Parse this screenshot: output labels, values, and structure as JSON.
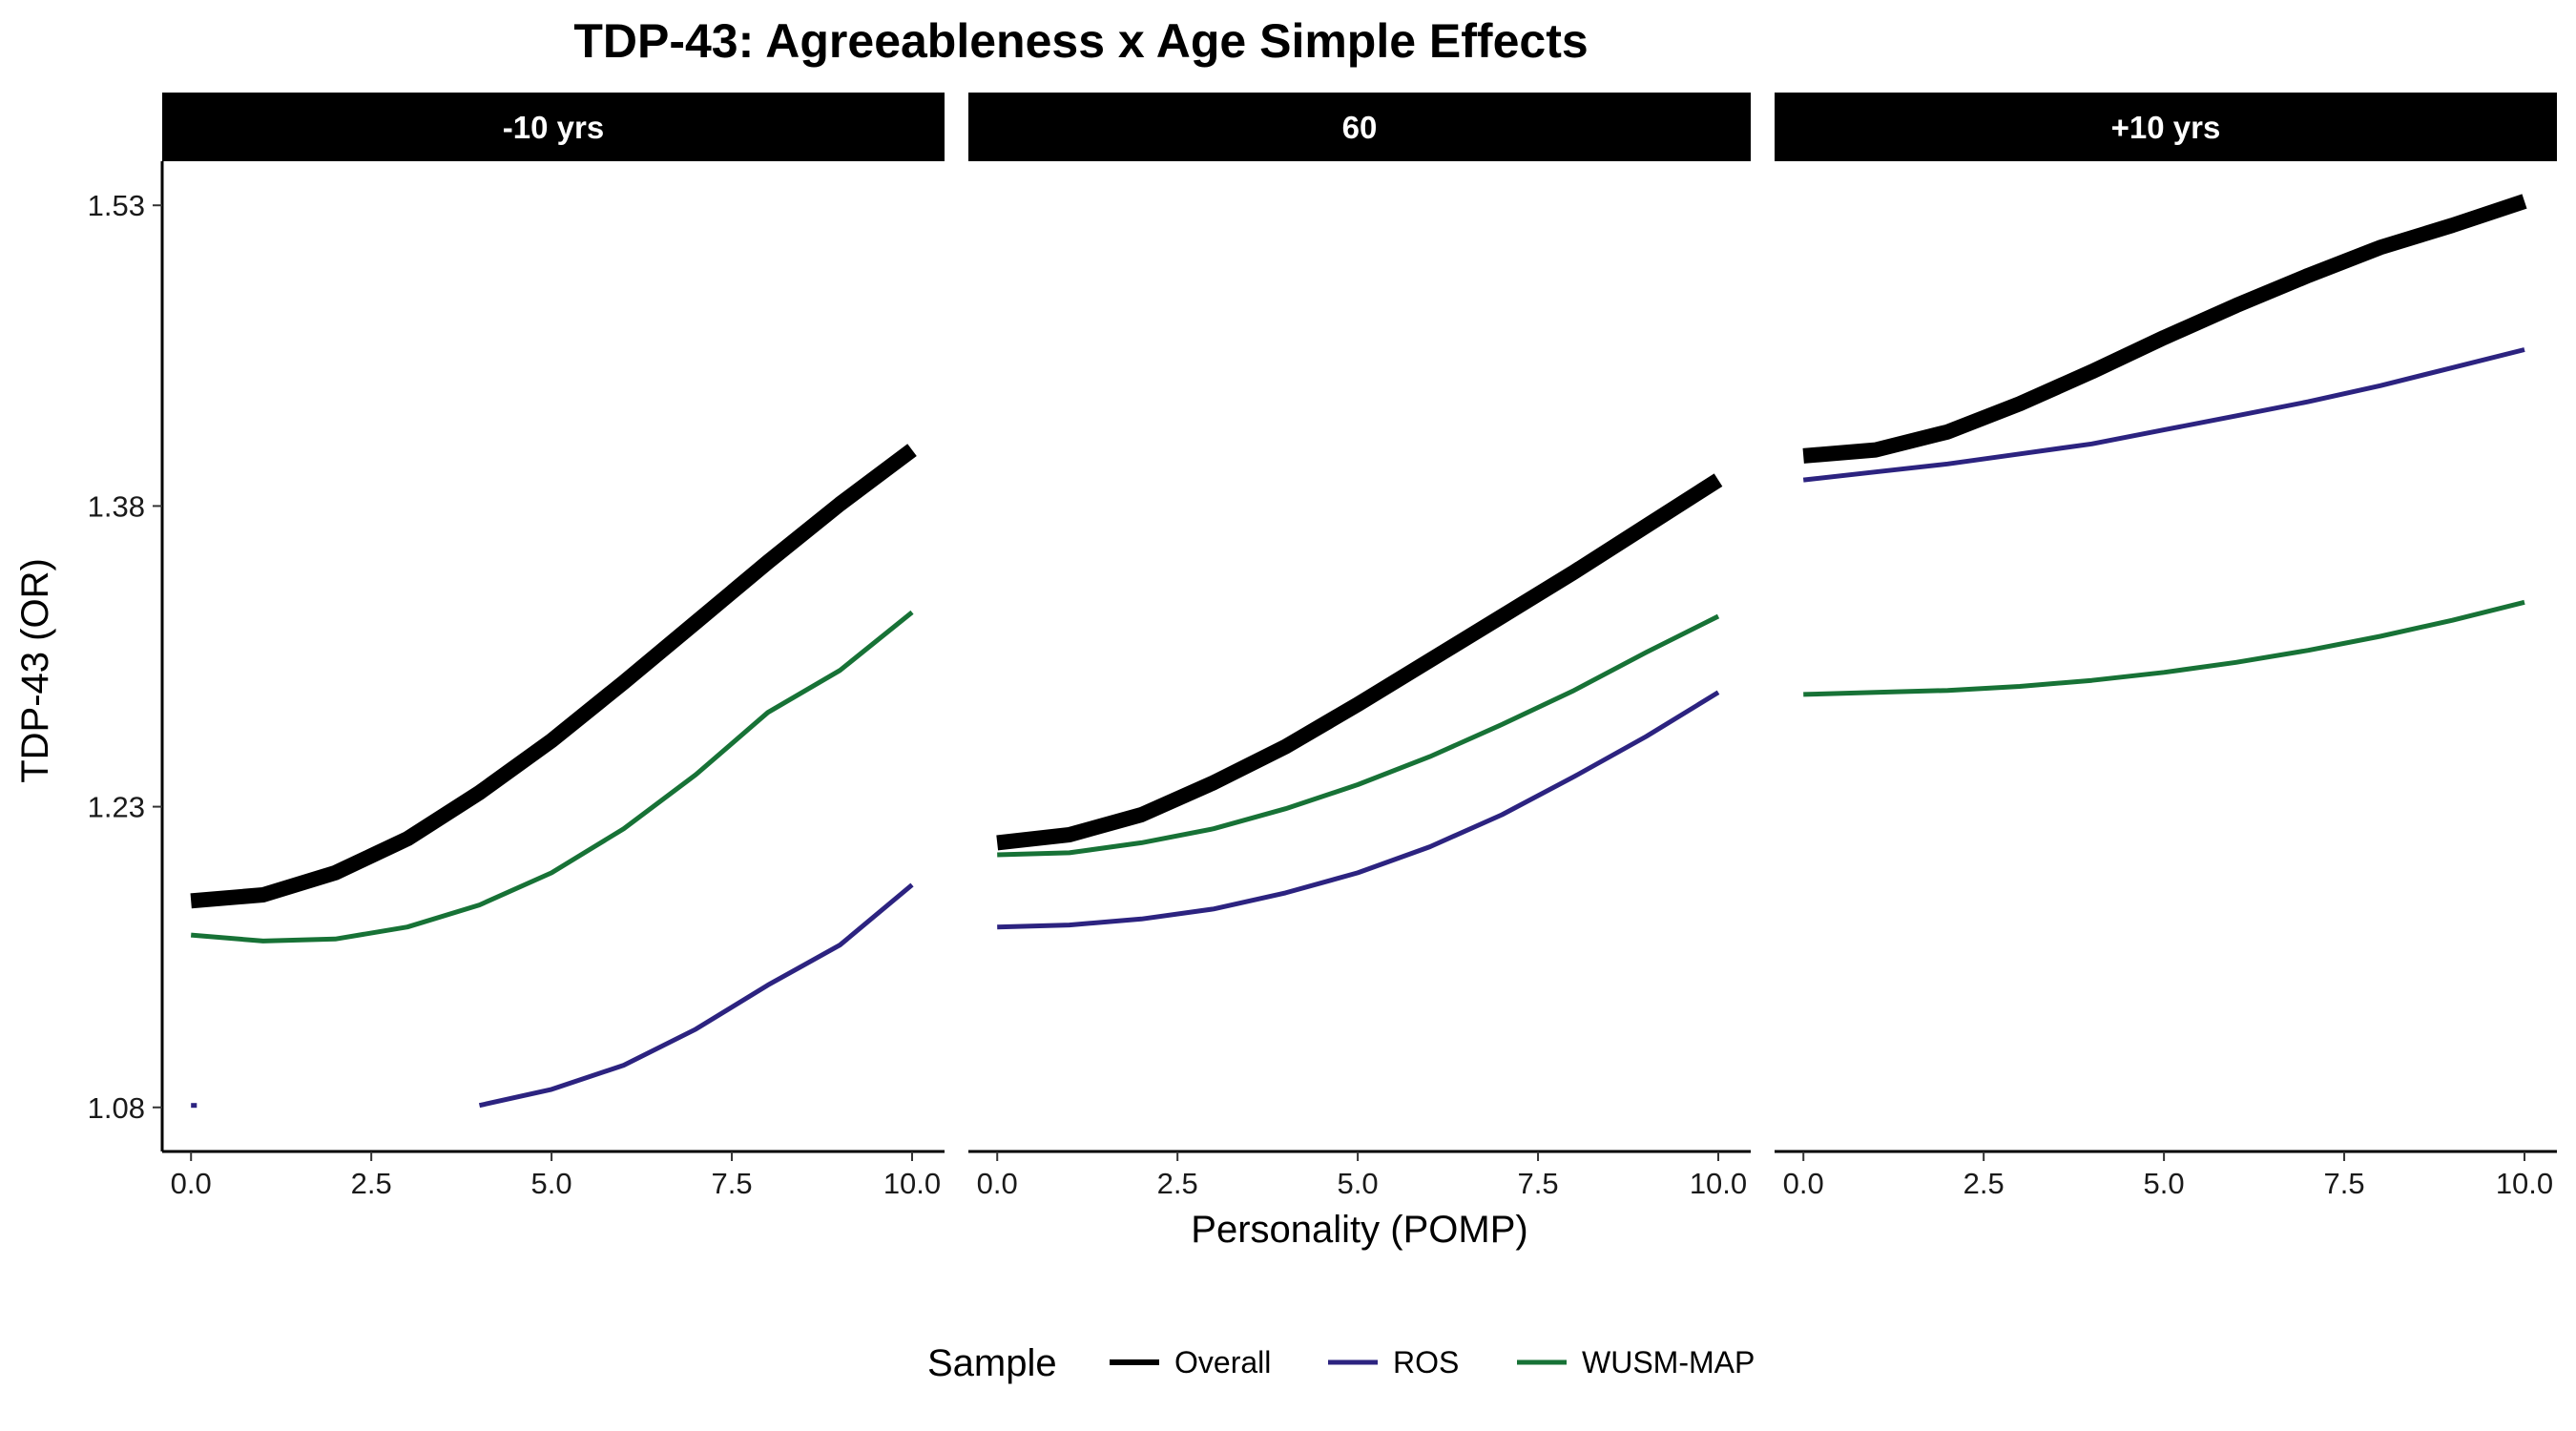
{
  "chart_data": {
    "type": "line",
    "title": "TDP-43: Agreeableness x Age Simple Effects",
    "xlabel": "Personality (POMP)",
    "ylabel": "TDP-43 (OR)",
    "xlim": [
      -0.4,
      10.45
    ],
    "ylim": [
      1.058,
      1.552
    ],
    "x_ticks": [
      0,
      2.5,
      5,
      7.5,
      10
    ],
    "x_tick_labels": [
      "0.0",
      "2.5",
      "5.0",
      "7.5",
      "10.0"
    ],
    "y_ticks": [
      1.08,
      1.23,
      1.38,
      1.53
    ],
    "y_tick_labels": [
      "1.08",
      "1.23",
      "1.38",
      "1.53"
    ],
    "grid": false,
    "legend": {
      "title": "Sample",
      "position": "bottom",
      "entries": [
        {
          "label": "Overall",
          "color": "#000000"
        },
        {
          "label": "ROS",
          "color": "#2c2380"
        },
        {
          "label": "WUSM-MAP",
          "color": "#177236"
        }
      ]
    },
    "panels": [
      {
        "label": "-10 yrs",
        "series": [
          {
            "name": "Overall",
            "color": "#000000",
            "x": [
              0,
              1,
              2,
              3,
              4,
              5,
              6,
              7,
              8,
              9,
              10
            ],
            "y": [
              1.183,
              1.186,
              1.197,
              1.214,
              1.237,
              1.263,
              1.292,
              1.322,
              1.352,
              1.381,
              1.408
            ]
          },
          {
            "name": "WUSM-MAP",
            "color": "#177236",
            "x": [
              0,
              1,
              2,
              3,
              4,
              5,
              6,
              7,
              8,
              9,
              10
            ],
            "y": [
              1.166,
              1.163,
              1.164,
              1.17,
              1.181,
              1.197,
              1.219,
              1.246,
              1.277,
              1.298,
              1.327
            ]
          },
          {
            "name": "ROS",
            "color": "#2c2380",
            "x": [
              4,
              5,
              6,
              7,
              8,
              9,
              10
            ],
            "y": [
              1.081,
              1.089,
              1.101,
              1.119,
              1.141,
              1.161,
              1.191
            ]
          },
          {
            "name": "ROS",
            "color": "#2c2380",
            "x": [
              0,
              0.08
            ],
            "y": [
              1.081,
              1.081
            ]
          }
        ]
      },
      {
        "label": "60",
        "series": [
          {
            "name": "Overall",
            "color": "#000000",
            "x": [
              0,
              1,
              2,
              3,
              4,
              5,
              6,
              7,
              8,
              9,
              10
            ],
            "y": [
              1.212,
              1.216,
              1.226,
              1.242,
              1.26,
              1.281,
              1.303,
              1.325,
              1.347,
              1.37,
              1.393
            ]
          },
          {
            "name": "WUSM-MAP",
            "color": "#177236",
            "x": [
              0,
              1,
              2,
              3,
              4,
              5,
              6,
              7,
              8,
              9,
              10
            ],
            "y": [
              1.206,
              1.207,
              1.212,
              1.219,
              1.229,
              1.241,
              1.255,
              1.271,
              1.288,
              1.307,
              1.325
            ]
          },
          {
            "name": "ROS",
            "color": "#2c2380",
            "x": [
              0,
              1,
              2,
              3,
              4,
              5,
              6,
              7,
              8,
              9,
              10
            ],
            "y": [
              1.17,
              1.171,
              1.174,
              1.179,
              1.187,
              1.197,
              1.21,
              1.226,
              1.245,
              1.265,
              1.287
            ]
          }
        ]
      },
      {
        "label": "+10 yrs",
        "series": [
          {
            "name": "Overall",
            "color": "#000000",
            "x": [
              0,
              1,
              2,
              3,
              4,
              5,
              6,
              7,
              8,
              9,
              10
            ],
            "y": [
              1.405,
              1.408,
              1.417,
              1.431,
              1.447,
              1.464,
              1.48,
              1.495,
              1.509,
              1.52,
              1.532
            ]
          },
          {
            "name": "ROS",
            "color": "#2c2380",
            "x": [
              0,
              1,
              2,
              3,
              4,
              5,
              6,
              7,
              8,
              9,
              10
            ],
            "y": [
              1.393,
              1.397,
              1.401,
              1.406,
              1.411,
              1.418,
              1.425,
              1.432,
              1.44,
              1.449,
              1.458
            ]
          },
          {
            "name": "WUSM-MAP",
            "color": "#177236",
            "x": [
              0,
              1,
              2,
              3,
              4,
              5,
              6,
              7,
              8,
              9,
              10
            ],
            "y": [
              1.286,
              1.287,
              1.288,
              1.29,
              1.293,
              1.297,
              1.302,
              1.308,
              1.315,
              1.323,
              1.332
            ]
          }
        ]
      }
    ]
  }
}
